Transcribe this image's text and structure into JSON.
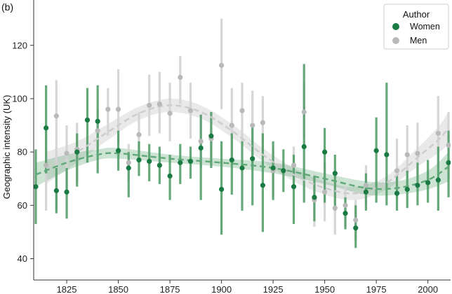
{
  "chart_data": {
    "type": "scatter",
    "panel_label": "(b)",
    "ylabel": "Geographic intensity (UK)",
    "xlabel": "",
    "xlim": [
      1809,
      2011
    ],
    "ylim": [
      32,
      137
    ],
    "xticks": [
      1825,
      1850,
      1875,
      1900,
      1925,
      1950,
      1975,
      2000
    ],
    "yticks": [
      40,
      60,
      80,
      100,
      120
    ],
    "grid": false,
    "legend": {
      "title": "Author",
      "position": "top-right"
    },
    "series": [
      {
        "name": "Women",
        "color": "#1a7a43",
        "points": [
          {
            "x": 1810,
            "y": 67,
            "lo": 53,
            "hi": 81
          },
          {
            "x": 1815,
            "y": 89,
            "lo": 72,
            "hi": 105
          },
          {
            "x": 1820,
            "y": 65.5,
            "lo": 57,
            "hi": 74
          },
          {
            "x": 1825,
            "y": 65,
            "lo": 55,
            "hi": 74
          },
          {
            "x": 1830,
            "y": 80,
            "lo": 67,
            "hi": 87
          },
          {
            "x": 1835,
            "y": 92,
            "lo": 76,
            "hi": 104
          },
          {
            "x": 1840,
            "y": 91.5,
            "lo": 72,
            "hi": 105
          },
          {
            "x": 1850,
            "y": 80.5,
            "lo": 73,
            "hi": 88
          },
          {
            "x": 1855,
            "y": 74,
            "lo": 63,
            "hi": 80
          },
          {
            "x": 1860,
            "y": 77,
            "lo": 71,
            "hi": 84
          },
          {
            "x": 1865,
            "y": 76.5,
            "lo": 69,
            "hi": 83
          },
          {
            "x": 1870,
            "y": 75,
            "lo": 68,
            "hi": 82
          },
          {
            "x": 1875,
            "y": 71,
            "lo": 62,
            "hi": 79
          },
          {
            "x": 1880,
            "y": 76,
            "lo": 68,
            "hi": 83
          },
          {
            "x": 1885,
            "y": 76.5,
            "lo": 70,
            "hi": 82
          },
          {
            "x": 1890,
            "y": 81.5,
            "lo": 62,
            "hi": 94
          },
          {
            "x": 1895,
            "y": 86,
            "lo": 74,
            "hi": 95
          },
          {
            "x": 1900,
            "y": 66,
            "lo": 49,
            "hi": 84
          },
          {
            "x": 1905,
            "y": 77,
            "lo": 64,
            "hi": 87
          },
          {
            "x": 1910,
            "y": 74,
            "lo": 58,
            "hi": 84
          },
          {
            "x": 1915,
            "y": 77.5,
            "lo": 60,
            "hi": 90
          },
          {
            "x": 1920,
            "y": 67.5,
            "lo": 50,
            "hi": 87
          },
          {
            "x": 1925,
            "y": 74,
            "lo": 62,
            "hi": 84
          },
          {
            "x": 1930,
            "y": 73,
            "lo": 65,
            "hi": 81
          },
          {
            "x": 1935,
            "y": 67,
            "lo": 53,
            "hi": 79
          },
          {
            "x": 1940,
            "y": 82,
            "lo": 61,
            "hi": 113
          },
          {
            "x": 1945,
            "y": 63,
            "lo": 54,
            "hi": 71
          },
          {
            "x": 1950,
            "y": 80,
            "lo": 61,
            "hi": 89
          },
          {
            "x": 1955,
            "y": 72,
            "lo": 58,
            "hi": 79
          },
          {
            "x": 1960,
            "y": 57,
            "lo": 51,
            "hi": 63
          },
          {
            "x": 1965,
            "y": 51.5,
            "lo": 44,
            "hi": 60
          },
          {
            "x": 1970,
            "y": 65,
            "lo": 58,
            "hi": 72
          },
          {
            "x": 1975,
            "y": 80.5,
            "lo": 61,
            "hi": 93
          },
          {
            "x": 1980,
            "y": 79,
            "lo": 60,
            "hi": 106
          },
          {
            "x": 1985,
            "y": 64.5,
            "lo": 58,
            "hi": 71
          },
          {
            "x": 1990,
            "y": 66,
            "lo": 59,
            "hi": 73
          },
          {
            "x": 1995,
            "y": 67.5,
            "lo": 60,
            "hi": 76
          },
          {
            "x": 2000,
            "y": 68.5,
            "lo": 61,
            "hi": 77
          },
          {
            "x": 2005,
            "y": 69.5,
            "lo": 58,
            "hi": 82
          },
          {
            "x": 2010,
            "y": 76,
            "lo": 63,
            "hi": 88
          }
        ],
        "trend": [
          {
            "x": 1810,
            "y": 71.5,
            "lo": 67,
            "hi": 76
          },
          {
            "x": 1825,
            "y": 76,
            "lo": 73,
            "hi": 79
          },
          {
            "x": 1840,
            "y": 79,
            "lo": 77,
            "hi": 81
          },
          {
            "x": 1850,
            "y": 79.5,
            "lo": 77.5,
            "hi": 81.5
          },
          {
            "x": 1875,
            "y": 77.5,
            "lo": 76,
            "hi": 79
          },
          {
            "x": 1900,
            "y": 76,
            "lo": 74.5,
            "hi": 77.5
          },
          {
            "x": 1925,
            "y": 74,
            "lo": 72,
            "hi": 76
          },
          {
            "x": 1950,
            "y": 70,
            "lo": 68,
            "hi": 72
          },
          {
            "x": 1970,
            "y": 66.5,
            "lo": 64,
            "hi": 69
          },
          {
            "x": 1985,
            "y": 66.5,
            "lo": 64,
            "hi": 69
          },
          {
            "x": 2000,
            "y": 69.5,
            "lo": 66,
            "hi": 73
          },
          {
            "x": 2010,
            "y": 74.5,
            "lo": 69,
            "hi": 80
          }
        ]
      },
      {
        "name": "Men",
        "color": "#b9b9b9",
        "points": [
          {
            "x": 1815,
            "y": 75,
            "lo": 58,
            "hi": 88
          },
          {
            "x": 1820,
            "y": 93.5,
            "lo": 58,
            "hi": 107
          },
          {
            "x": 1825,
            "y": 79.5,
            "lo": 66,
            "hi": 90
          },
          {
            "x": 1830,
            "y": 81,
            "lo": 69,
            "hi": 91
          },
          {
            "x": 1840,
            "y": 88,
            "lo": 80,
            "hi": 96
          },
          {
            "x": 1845,
            "y": 96,
            "lo": 86,
            "hi": 104
          },
          {
            "x": 1850,
            "y": 96,
            "lo": 83,
            "hi": 111
          },
          {
            "x": 1855,
            "y": 76,
            "lo": 69,
            "hi": 83
          },
          {
            "x": 1860,
            "y": 86.5,
            "lo": 78,
            "hi": 95
          },
          {
            "x": 1865,
            "y": 97.5,
            "lo": 86,
            "hi": 109
          },
          {
            "x": 1870,
            "y": 98,
            "lo": 87,
            "hi": 110
          },
          {
            "x": 1875,
            "y": 94.5,
            "lo": 84,
            "hi": 106
          },
          {
            "x": 1880,
            "y": 108,
            "lo": 98,
            "hi": 116
          },
          {
            "x": 1885,
            "y": 95.5,
            "lo": 85,
            "hi": 106
          },
          {
            "x": 1890,
            "y": 84,
            "lo": 74,
            "hi": 94
          },
          {
            "x": 1895,
            "y": 85,
            "lo": 75,
            "hi": 95
          },
          {
            "x": 1900,
            "y": 112.5,
            "lo": 96,
            "hi": 130
          },
          {
            "x": 1905,
            "y": 90,
            "lo": 76,
            "hi": 104
          },
          {
            "x": 1910,
            "y": 95.5,
            "lo": 84,
            "hi": 106
          },
          {
            "x": 1915,
            "y": 90,
            "lo": 75,
            "hi": 103
          },
          {
            "x": 1920,
            "y": 91,
            "lo": 80,
            "hi": 101
          },
          {
            "x": 1925,
            "y": 73,
            "lo": 63,
            "hi": 82
          },
          {
            "x": 1935,
            "y": 75,
            "lo": 68,
            "hi": 82
          },
          {
            "x": 1940,
            "y": 95,
            "lo": 85,
            "hi": 106
          },
          {
            "x": 1945,
            "y": 62,
            "lo": 52,
            "hi": 72
          },
          {
            "x": 1950,
            "y": 65,
            "lo": 54,
            "hi": 76
          },
          {
            "x": 1955,
            "y": 59,
            "lo": 49,
            "hi": 67
          },
          {
            "x": 1960,
            "y": 60,
            "lo": 52,
            "hi": 67
          },
          {
            "x": 1965,
            "y": 54.5,
            "lo": 47,
            "hi": 62
          },
          {
            "x": 1970,
            "y": 67.5,
            "lo": 60,
            "hi": 75
          },
          {
            "x": 1985,
            "y": 73,
            "lo": 62,
            "hi": 85
          },
          {
            "x": 1990,
            "y": 79,
            "lo": 68,
            "hi": 90
          },
          {
            "x": 1995,
            "y": 79.5,
            "lo": 69,
            "hi": 91
          },
          {
            "x": 2005,
            "y": 87,
            "lo": 74,
            "hi": 101
          },
          {
            "x": 2010,
            "y": 82.5,
            "lo": 70,
            "hi": 95
          }
        ],
        "trend": [
          {
            "x": 1815,
            "y": 74,
            "lo": 68,
            "hi": 80
          },
          {
            "x": 1830,
            "y": 80,
            "lo": 76,
            "hi": 84
          },
          {
            "x": 1845,
            "y": 87.5,
            "lo": 84.5,
            "hi": 90.5
          },
          {
            "x": 1860,
            "y": 94.5,
            "lo": 92,
            "hi": 97
          },
          {
            "x": 1875,
            "y": 97.5,
            "lo": 95,
            "hi": 100
          },
          {
            "x": 1890,
            "y": 95,
            "lo": 92.5,
            "hi": 97.5
          },
          {
            "x": 1905,
            "y": 88,
            "lo": 85.5,
            "hi": 90.5
          },
          {
            "x": 1920,
            "y": 79,
            "lo": 76.5,
            "hi": 81.5
          },
          {
            "x": 1935,
            "y": 71.5,
            "lo": 69,
            "hi": 74
          },
          {
            "x": 1950,
            "y": 66.5,
            "lo": 64,
            "hi": 69
          },
          {
            "x": 1965,
            "y": 64.5,
            "lo": 62,
            "hi": 67
          },
          {
            "x": 1980,
            "y": 68.5,
            "lo": 66,
            "hi": 71
          },
          {
            "x": 1995,
            "y": 78,
            "lo": 74.5,
            "hi": 81.5
          },
          {
            "x": 2005,
            "y": 84.5,
            "lo": 79.5,
            "hi": 89.5
          },
          {
            "x": 2010,
            "y": 89,
            "lo": 83,
            "hi": 95
          }
        ]
      }
    ]
  }
}
